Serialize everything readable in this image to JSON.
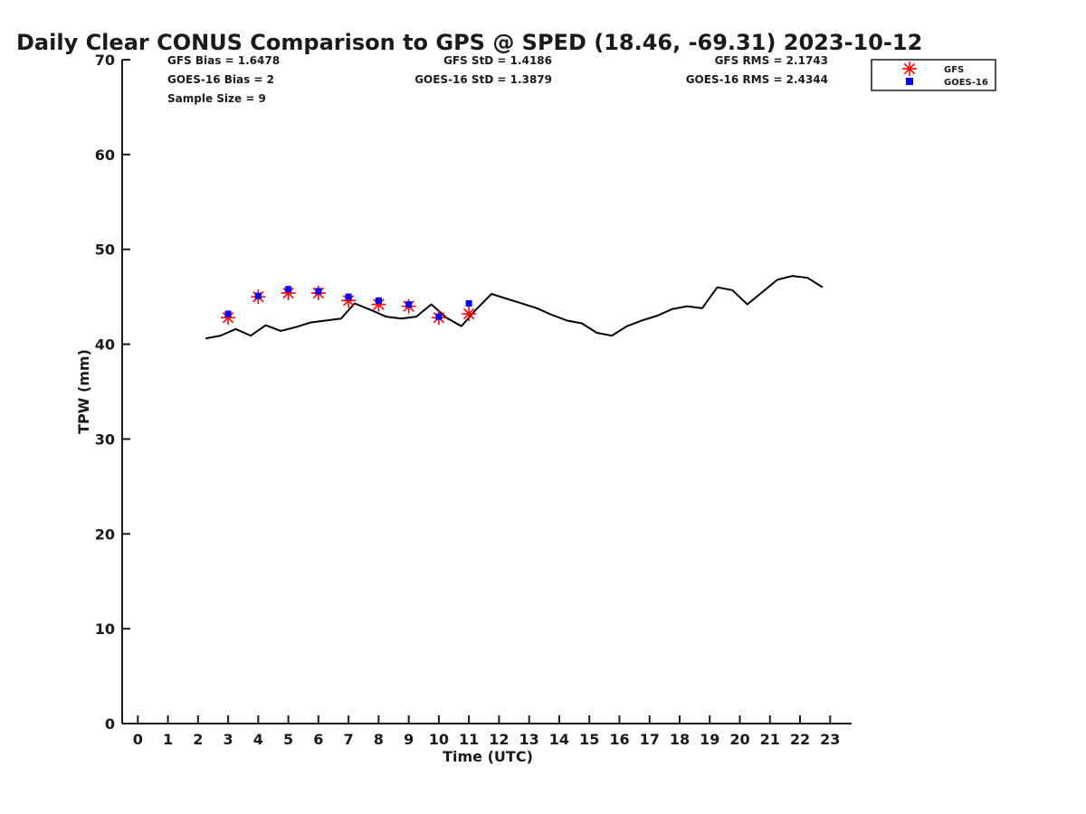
{
  "chart_data": {
    "type": "scatter",
    "title": "Daily Clear CONUS Comparison to GPS @ SPED (18.46, -69.31) 2023-10-12",
    "xlabel": "Time (UTC)",
    "ylabel": "TPW (mm)",
    "xlim": [
      -0.5,
      23.7
    ],
    "ylim": [
      0,
      70
    ],
    "x_ticks": [
      0,
      1,
      2,
      3,
      4,
      5,
      6,
      7,
      8,
      9,
      10,
      11,
      12,
      13,
      14,
      15,
      16,
      17,
      18,
      19,
      20,
      21,
      22,
      23
    ],
    "y_ticks": [
      0,
      10,
      20,
      30,
      40,
      50,
      60,
      70
    ],
    "grid": false,
    "legend_position": "top-right",
    "stats": [
      "GFS Bias = 1.6478",
      "GOES-16 Bias = 2",
      "Sample Size = 9",
      "GFS StD = 1.4186",
      "GOES-16 StD = 1.3879",
      "GFS RMS = 2.1743",
      "GOES-16 RMS = 2.4344"
    ],
    "series": [
      {
        "kind": "line",
        "color": "#000000",
        "x": [
          2.25,
          2.75,
          3.25,
          3.75,
          4.25,
          4.75,
          5.25,
          5.75,
          6.25,
          6.75,
          7.2,
          7.75,
          8.25,
          8.75,
          9.25,
          9.75,
          10.25,
          10.75,
          11.25,
          11.75,
          12.25,
          12.75,
          13.25,
          13.75,
          14.25,
          14.75,
          15.25,
          15.75,
          16.25,
          16.75,
          17.25,
          17.75,
          18.25,
          18.75,
          19.25,
          19.75,
          20.25,
          20.75,
          21.25,
          21.75,
          22.25,
          22.75
        ],
        "values": [
          40.6,
          40.9,
          41.6,
          40.9,
          42.0,
          41.4,
          41.8,
          42.3,
          42.5,
          42.7,
          44.3,
          43.6,
          42.9,
          42.7,
          42.9,
          44.2,
          42.8,
          41.9,
          43.7,
          45.3,
          44.8,
          44.3,
          43.8,
          43.1,
          42.5,
          42.2,
          41.2,
          40.9,
          41.9,
          42.5,
          43.0,
          43.7,
          44.0,
          43.8,
          46.0,
          45.7,
          44.2,
          45.5,
          46.8,
          47.2,
          47.0,
          46.0
        ]
      },
      {
        "name": "GFS",
        "kind": "marker-asterisk",
        "color": "#ff0000",
        "x": [
          3,
          4,
          5,
          6,
          7,
          8,
          9,
          10,
          11
        ],
        "values": [
          42.8,
          45.0,
          45.4,
          45.4,
          44.6,
          44.2,
          44.0,
          42.8,
          43.2
        ]
      },
      {
        "name": "GOES-16",
        "kind": "marker-square",
        "color": "#0000ff",
        "x": [
          3,
          4,
          5,
          6,
          7,
          8,
          9,
          10,
          11
        ],
        "values": [
          43.2,
          45.1,
          45.8,
          45.6,
          45.0,
          44.6,
          44.2,
          42.9,
          44.3
        ]
      }
    ]
  }
}
